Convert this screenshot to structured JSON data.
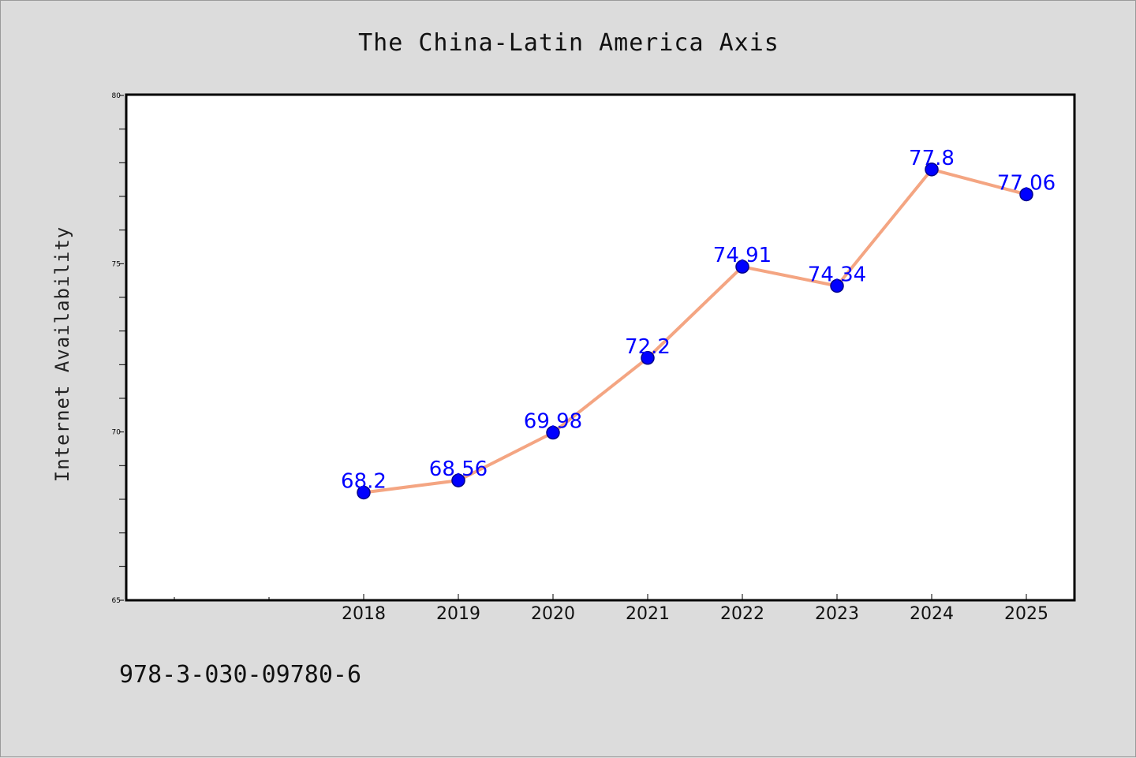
{
  "chart_data": {
    "type": "line",
    "title": "The China-Latin America Axis",
    "xlabel": "",
    "ylabel": "Internet Availability",
    "categories": [
      "2018",
      "2019",
      "2020",
      "2021",
      "2022",
      "2023",
      "2024",
      "2025"
    ],
    "values": [
      68.2,
      68.56,
      69.98,
      72.2,
      74.91,
      74.34,
      77.8,
      77.06
    ],
    "data_labels": [
      "68.2",
      "68.56",
      "69.98",
      "72.2",
      "74.91",
      "74.34",
      "77.8",
      "77.06"
    ],
    "y_ticks": [
      "65",
      "70",
      "75",
      "80"
    ],
    "ylim": [
      65,
      80
    ],
    "grid": false,
    "legend": "none",
    "colors": {
      "line": "#f4a582",
      "marker": "#0000ff",
      "marker_edge": "#00008b",
      "label": "#0000ff"
    }
  },
  "footer": {
    "isbn": "978-3-030-09780-6"
  }
}
